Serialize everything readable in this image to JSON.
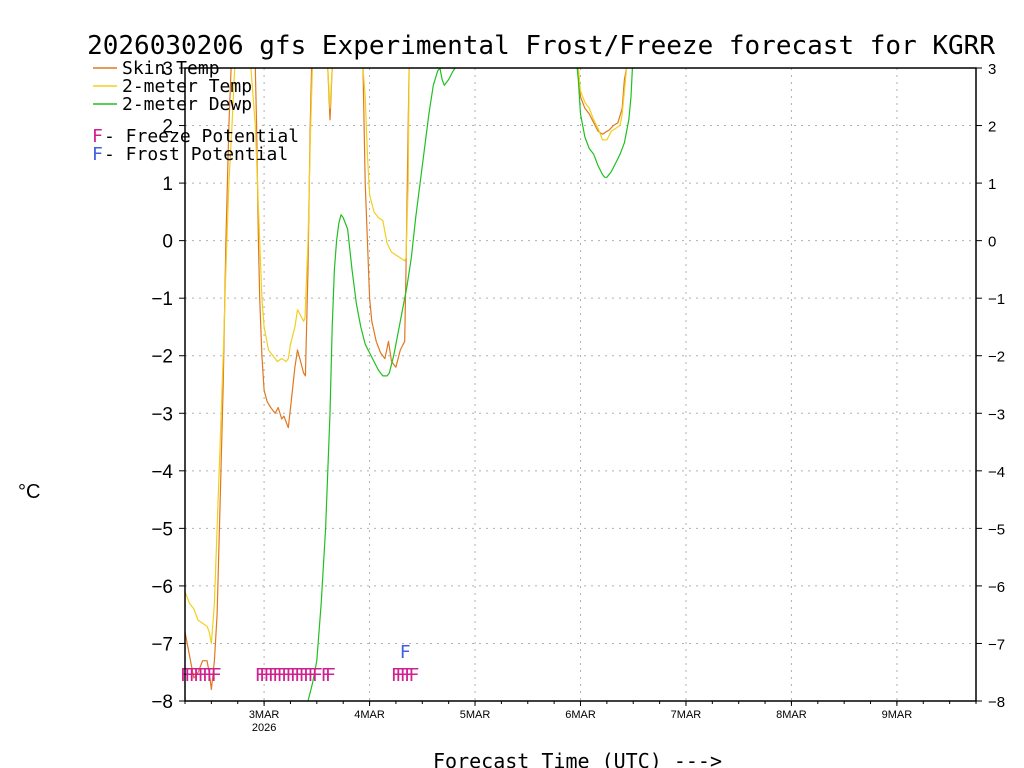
{
  "chart_data": {
    "type": "line",
    "title": "2026030206 gfs Experimental Frost/Freeze forecast for KGRR",
    "xlabel": "Forecast Time (UTC) --->",
    "ylabel": "°C",
    "ylim": [
      -8,
      3
    ],
    "xlim": [
      0,
      180
    ],
    "yticks": [
      -8,
      -7,
      -6,
      -5,
      -4,
      -3,
      -2,
      -1,
      0,
      1,
      2,
      3
    ],
    "xticks": [
      {
        "x": 18,
        "label": "3MAR",
        "sublabel": "2026"
      },
      {
        "x": 42,
        "label": "4MAR"
      },
      {
        "x": 66,
        "label": "5MAR"
      },
      {
        "x": 90,
        "label": "6MAR"
      },
      {
        "x": 114,
        "label": "7MAR"
      },
      {
        "x": 138,
        "label": "8MAR"
      },
      {
        "x": 162,
        "label": "9MAR"
      }
    ],
    "grid": true,
    "legend": [
      {
        "label": "Skin Temp",
        "color": "#e07820"
      },
      {
        "label": "2-meter Temp",
        "color": "#f0d020"
      },
      {
        "label": "2-meter Dewp",
        "color": "#20c020"
      },
      {
        "label": "F - Freeze Potential",
        "color": "#d02090",
        "marker": "F"
      },
      {
        "label": "F - Frost Potential",
        "color": "#4060e0",
        "marker": "F"
      }
    ],
    "series": [
      {
        "name": "Skin Temp",
        "color": "#e07820",
        "points": [
          [
            0,
            -6.8
          ],
          [
            1,
            -7.2
          ],
          [
            2,
            -7.6
          ],
          [
            3,
            -7.5
          ],
          [
            4,
            -7.3
          ],
          [
            5,
            -7.3
          ],
          [
            5.5,
            -7.5
          ],
          [
            6,
            -7.8
          ],
          [
            6.7,
            -7.3
          ],
          [
            7.3,
            -6.5
          ],
          [
            8,
            -4.5
          ],
          [
            8.7,
            -2.5
          ],
          [
            9.3,
            0
          ],
          [
            10,
            2
          ],
          [
            10.5,
            3
          ],
          [
            11,
            5
          ],
          [
            15,
            5
          ],
          [
            16,
            3
          ],
          [
            16.3,
            2
          ],
          [
            16.7,
            0
          ],
          [
            17,
            -1
          ],
          [
            17.5,
            -2
          ],
          [
            18,
            -2.6
          ],
          [
            18.7,
            -2.8
          ],
          [
            19.5,
            -2.9
          ],
          [
            20.5,
            -3.0
          ],
          [
            21.2,
            -2.9
          ],
          [
            22,
            -3.1
          ],
          [
            22.5,
            -3.05
          ],
          [
            23,
            -3.15
          ],
          [
            23.5,
            -3.25
          ],
          [
            24.3,
            -2.7
          ],
          [
            25,
            -2.2
          ],
          [
            25.6,
            -1.9
          ],
          [
            26.3,
            -2.1
          ],
          [
            27,
            -2.3
          ],
          [
            27.4,
            -2.35
          ],
          [
            28,
            -0.5
          ],
          [
            28.5,
            2
          ],
          [
            28.8,
            3
          ],
          [
            29,
            4
          ],
          [
            31,
            4
          ],
          [
            32.5,
            3
          ],
          [
            33,
            2.1
          ],
          [
            33.5,
            3
          ],
          [
            34,
            5
          ],
          [
            40,
            5
          ],
          [
            40.5,
            3
          ],
          [
            41,
            1
          ],
          [
            41.5,
            0
          ],
          [
            42,
            -1
          ],
          [
            42.5,
            -1.4
          ],
          [
            43.5,
            -1.75
          ],
          [
            44.5,
            -1.95
          ],
          [
            45.5,
            -2.05
          ],
          [
            46.3,
            -1.75
          ],
          [
            47,
            -2.1
          ],
          [
            48,
            -2.2
          ],
          [
            49,
            -1.9
          ],
          [
            50,
            -1.75
          ],
          [
            50.3,
            -0.5
          ],
          [
            50.8,
            2
          ],
          [
            51,
            3
          ],
          [
            51.3,
            4
          ],
          [
            89,
            4
          ],
          [
            89.5,
            3
          ],
          [
            90,
            2.5
          ],
          [
            91,
            2.3
          ],
          [
            92,
            2.2
          ],
          [
            93,
            2.05
          ],
          [
            94,
            1.9
          ],
          [
            95,
            1.85
          ],
          [
            96,
            1.9
          ],
          [
            96.5,
            1.92
          ],
          [
            97.5,
            2.0
          ],
          [
            98.5,
            2.05
          ],
          [
            99.5,
            2.3
          ],
          [
            100,
            2.8
          ],
          [
            100.5,
            3
          ],
          [
            101,
            4
          ]
        ]
      },
      {
        "name": "2-meter Temp",
        "color": "#f0d020",
        "points": [
          [
            0,
            -6.1
          ],
          [
            1,
            -6.3
          ],
          [
            2,
            -6.4
          ],
          [
            3,
            -6.6
          ],
          [
            4,
            -6.65
          ],
          [
            5,
            -6.7
          ],
          [
            5.5,
            -6.8
          ],
          [
            6,
            -7.0
          ],
          [
            6.7,
            -6.3
          ],
          [
            7.3,
            -5.0
          ],
          [
            8,
            -3.5
          ],
          [
            8.7,
            -2
          ],
          [
            9.3,
            -0.5
          ],
          [
            10,
            1
          ],
          [
            10.7,
            2
          ],
          [
            11.3,
            3
          ],
          [
            12,
            4
          ],
          [
            14,
            4
          ],
          [
            15,
            3
          ],
          [
            16,
            2
          ],
          [
            16.5,
            1
          ],
          [
            17,
            0
          ],
          [
            17.5,
            -1
          ],
          [
            18,
            -1.5
          ],
          [
            19,
            -1.9
          ],
          [
            20,
            -2.0
          ],
          [
            21,
            -2.1
          ],
          [
            22,
            -2.05
          ],
          [
            23,
            -2.1
          ],
          [
            23.5,
            -2.05
          ],
          [
            24,
            -1.8
          ],
          [
            25,
            -1.5
          ],
          [
            25.6,
            -1.2
          ],
          [
            26.3,
            -1.3
          ],
          [
            27,
            -1.4
          ],
          [
            27.3,
            -1.35
          ],
          [
            28,
            0
          ],
          [
            28.6,
            2
          ],
          [
            29,
            3
          ],
          [
            29.5,
            4
          ],
          [
            32,
            4
          ],
          [
            32.5,
            3
          ],
          [
            33,
            2.3
          ],
          [
            33.5,
            3
          ],
          [
            34,
            4
          ],
          [
            40,
            4
          ],
          [
            40.5,
            3
          ],
          [
            41,
            2.5
          ],
          [
            41.5,
            1.5
          ],
          [
            42,
            0.8
          ],
          [
            43,
            0.5
          ],
          [
            44,
            0.4
          ],
          [
            45,
            0.35
          ],
          [
            46,
            -0.05
          ],
          [
            47,
            -0.2
          ],
          [
            48,
            -0.25
          ],
          [
            49,
            -0.3
          ],
          [
            50,
            -0.35
          ],
          [
            50.3,
            -0.3
          ],
          [
            50.8,
            1
          ],
          [
            51,
            3
          ],
          [
            51.3,
            4
          ],
          [
            89,
            4
          ],
          [
            89.5,
            3
          ],
          [
            90,
            2.6
          ],
          [
            91,
            2.4
          ],
          [
            92,
            2.3
          ],
          [
            93,
            2.1
          ],
          [
            94,
            1.95
          ],
          [
            95,
            1.75
          ],
          [
            96,
            1.75
          ],
          [
            97,
            1.9
          ],
          [
            98,
            1.95
          ],
          [
            99,
            2.0
          ],
          [
            99.5,
            2.2
          ],
          [
            100,
            2.6
          ],
          [
            100.5,
            3
          ],
          [
            101,
            4
          ]
        ]
      },
      {
        "name": "2-meter Dewp",
        "color": "#20c020",
        "points": [
          [
            28,
            -8
          ],
          [
            29,
            -7.7
          ],
          [
            30,
            -7.3
          ],
          [
            31,
            -6.3
          ],
          [
            32,
            -5
          ],
          [
            33,
            -3
          ],
          [
            33.5,
            -1.5
          ],
          [
            34,
            -0.5
          ],
          [
            34.5,
            0
          ],
          [
            35,
            0.3
          ],
          [
            35.5,
            0.45
          ],
          [
            36,
            0.4
          ],
          [
            37,
            0.2
          ],
          [
            38,
            -0.5
          ],
          [
            39,
            -1.1
          ],
          [
            40,
            -1.5
          ],
          [
            41,
            -1.8
          ],
          [
            42,
            -1.95
          ],
          [
            43,
            -2.1
          ],
          [
            44,
            -2.25
          ],
          [
            45,
            -2.35
          ],
          [
            46,
            -2.35
          ],
          [
            46.5,
            -2.3
          ],
          [
            47.5,
            -2.0
          ],
          [
            48.5,
            -1.6
          ],
          [
            49.5,
            -1.2
          ],
          [
            50.5,
            -0.8
          ],
          [
            51.5,
            -0.3
          ],
          [
            52.5,
            0.4
          ],
          [
            53.5,
            1.0
          ],
          [
            54.5,
            1.6
          ],
          [
            55.5,
            2.2
          ],
          [
            56.5,
            2.7
          ],
          [
            57.5,
            2.95
          ],
          [
            58,
            3.0
          ],
          [
            58.5,
            2.8
          ],
          [
            59,
            2.7
          ],
          [
            60,
            2.8
          ],
          [
            61,
            2.95
          ],
          [
            62,
            3.05
          ],
          [
            63,
            3.2
          ],
          [
            89,
            3.2
          ],
          [
            89.5,
            2.8
          ],
          [
            90,
            2.2
          ],
          [
            91,
            1.8
          ],
          [
            92,
            1.6
          ],
          [
            93,
            1.5
          ],
          [
            94,
            1.3
          ],
          [
            95,
            1.15
          ],
          [
            95.5,
            1.1
          ],
          [
            96,
            1.1
          ],
          [
            97,
            1.2
          ],
          [
            98,
            1.35
          ],
          [
            99,
            1.5
          ],
          [
            100,
            1.7
          ],
          [
            100.5,
            1.9
          ],
          [
            101,
            2.1
          ],
          [
            101.5,
            2.5
          ],
          [
            101.8,
            3.0
          ],
          [
            102,
            4
          ]
        ]
      }
    ],
    "freeze_markers": {
      "y": -7.5,
      "label": "F",
      "color": "#d02090",
      "x": [
        0,
        1,
        2,
        3,
        4,
        5,
        6,
        7,
        17,
        18,
        19,
        20,
        21,
        22,
        23,
        24,
        25,
        26,
        27,
        28,
        29,
        30,
        32,
        33,
        48,
        49,
        50,
        51,
        52
      ]
    },
    "frost_markers": {
      "y": -7.1,
      "label": "F",
      "color": "#4060e0",
      "x": [
        50
      ]
    }
  }
}
